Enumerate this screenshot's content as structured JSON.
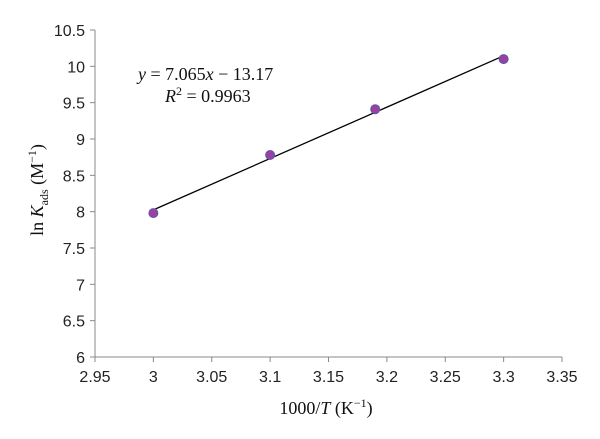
{
  "chart_data": {
    "type": "scatter",
    "title": "",
    "xlabel": "1000/T (K⁻¹)",
    "ylabel": "ln Kads (M⁻¹)",
    "xlim": [
      2.95,
      3.35
    ],
    "ylim": [
      6,
      10.5
    ],
    "xticks": [
      "2.95",
      "3",
      "3.05",
      "3.1",
      "3.15",
      "3.2",
      "3.25",
      "3.3",
      "3.35"
    ],
    "yticks": [
      "6",
      "6.5",
      "7",
      "7.5",
      "8",
      "8.5",
      "9",
      "9.5",
      "10",
      "10.5"
    ],
    "grid": false,
    "legend": "none",
    "series": [
      {
        "points": [
          {
            "x": 3.0,
            "y": 7.98
          },
          {
            "x": 3.1,
            "y": 8.78
          },
          {
            "x": 3.19,
            "y": 9.41
          },
          {
            "x": 3.3,
            "y": 10.1
          }
        ],
        "marker_color": "#9b3fa3",
        "marker_edge": "#5a5aa8"
      }
    ],
    "trendline": {
      "slope": 7.065,
      "intercept": -13.17,
      "x_range": [
        3.0,
        3.3
      ],
      "color": "#000000"
    },
    "annotations": {
      "equation": "y = 7.065x − 13.17",
      "r_squared": "R² = 0.9963"
    }
  }
}
